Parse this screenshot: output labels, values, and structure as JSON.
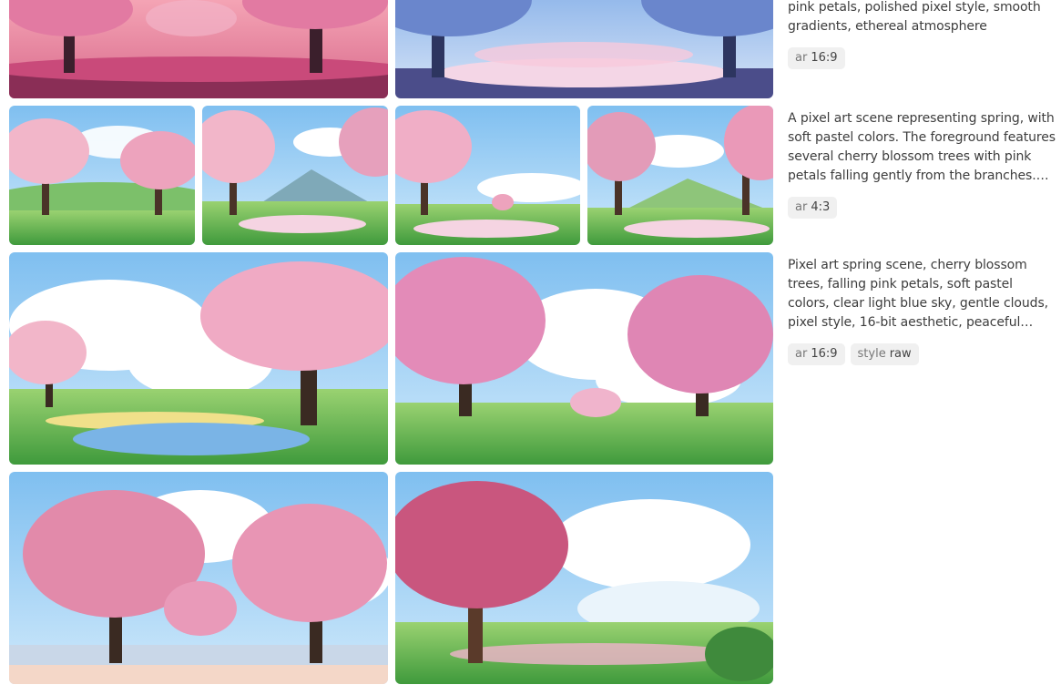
{
  "rows": [
    {
      "prompt": "pink petals, polished pixel style, smooth gradients, ethereal atmosphere",
      "params": [
        {
          "key": "ar",
          "value": "16:9"
        }
      ]
    },
    {
      "prompt": "A pixel art scene representing spring, with soft pastel colors. The foreground features several cherry blossom trees with pink petals falling gently from the branches. The background shows rolling green hills under a clear blue sky with fluffy white clouds.",
      "params": [
        {
          "key": "ar",
          "value": "4:3"
        }
      ]
    },
    {
      "prompt": "Pixel art spring scene, cherry blossom trees, falling pink petals, soft pastel colors, clear light blue sky, gentle clouds, pixel style, 16-bit aesthetic, peaceful atmosphere",
      "params": [
        {
          "key": "ar",
          "value": "16:9"
        },
        {
          "key": "style",
          "value": "raw"
        }
      ]
    }
  ],
  "colors": {
    "blossom_pink": "#e99ab9",
    "sky_blue": "#8ec6ef",
    "grass_green": "#6fbf5a",
    "tag_bg": "#f0f0f0"
  }
}
